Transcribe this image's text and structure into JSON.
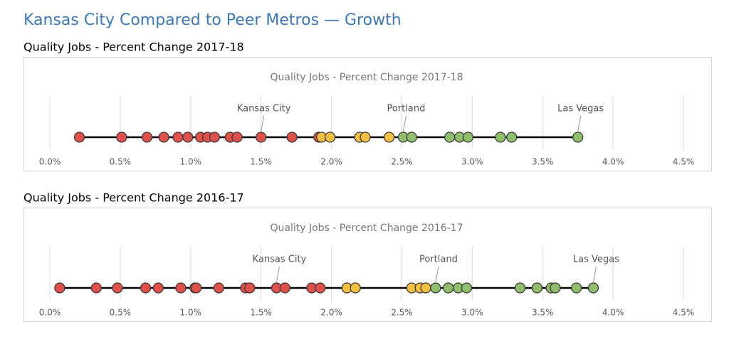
{
  "title": "Kansas City Compared to Peer Metros — Growth",
  "chart_data": [
    {
      "type": "strip",
      "heading": "Quality Jobs - Percent Change 2017-18",
      "title": "Quality Jobs - Percent Change 2017-18",
      "values": [
        0.21,
        0.51,
        0.69,
        0.81,
        0.91,
        0.98,
        1.07,
        1.12,
        1.17,
        1.28,
        1.33,
        1.5,
        1.72,
        1.91,
        1.93,
        1.99,
        2.2,
        2.24,
        2.41,
        2.51,
        2.57,
        2.84,
        2.91,
        2.97,
        3.2,
        3.28,
        3.75
      ],
      "colors": [
        "#e0504a",
        "#e0504a",
        "#e0504a",
        "#e0504a",
        "#e0504a",
        "#e0504a",
        "#e0504a",
        "#e0504a",
        "#e0504a",
        "#e0504a",
        "#e0504a",
        "#e0504a",
        "#e0504a",
        "#e0504a",
        "#f4c042",
        "#f4c042",
        "#f4c042",
        "#f4c042",
        "#f4c042",
        "#8fbf6a",
        "#8fbf6a",
        "#8fbf6a",
        "#8fbf6a",
        "#8fbf6a",
        "#8fbf6a",
        "#8fbf6a",
        "#8fbf6a"
      ],
      "labels": [
        null,
        null,
        null,
        null,
        null,
        null,
        null,
        null,
        null,
        null,
        null,
        "Kansas City",
        null,
        null,
        null,
        null,
        null,
        null,
        null,
        "Portland",
        null,
        null,
        null,
        null,
        null,
        null,
        "Las Vegas"
      ],
      "xlim": [
        0,
        4.5
      ],
      "xticks": [
        {
          "value": 0,
          "label": "0.0%"
        },
        {
          "value": 0.5,
          "label": "0.5%"
        },
        {
          "value": 1,
          "label": "1.0%"
        },
        {
          "value": 1.5,
          "label": "1.5%"
        },
        {
          "value": 2,
          "label": "2.0%"
        },
        {
          "value": 2.5,
          "label": "2.5%"
        },
        {
          "value": 3,
          "label": "3.0%"
        },
        {
          "value": 3.5,
          "label": "3.5%"
        },
        {
          "value": 4,
          "label": "4.0%"
        },
        {
          "value": 4.5,
          "label": "4.5%"
        }
      ],
      "grid": true
    },
    {
      "type": "strip",
      "heading": "Quality Jobs - Percent Change 2016-17",
      "title": "Quality Jobs - Percent Change 2016-17",
      "values": [
        0.07,
        0.33,
        0.48,
        0.68,
        0.77,
        0.93,
        1.03,
        1.04,
        1.2,
        1.39,
        1.42,
        1.61,
        1.67,
        1.86,
        1.92,
        2.11,
        2.17,
        2.57,
        2.63,
        2.67,
        2.74,
        2.83,
        2.9,
        2.96,
        3.34,
        3.46,
        3.56,
        3.59,
        3.74,
        3.86
      ],
      "colors": [
        "#e0504a",
        "#e0504a",
        "#e0504a",
        "#e0504a",
        "#e0504a",
        "#e0504a",
        "#e0504a",
        "#e0504a",
        "#e0504a",
        "#e0504a",
        "#e0504a",
        "#e0504a",
        "#e0504a",
        "#e0504a",
        "#e0504a",
        "#f4c042",
        "#f4c042",
        "#f4c042",
        "#f4c042",
        "#f4c042",
        "#8fbf6a",
        "#8fbf6a",
        "#8fbf6a",
        "#8fbf6a",
        "#8fbf6a",
        "#8fbf6a",
        "#8fbf6a",
        "#8fbf6a",
        "#8fbf6a",
        "#8fbf6a"
      ],
      "labels": [
        null,
        null,
        null,
        null,
        null,
        null,
        null,
        null,
        null,
        null,
        null,
        "Kansas City",
        null,
        null,
        null,
        null,
        null,
        null,
        null,
        null,
        "Portland",
        null,
        null,
        null,
        null,
        null,
        null,
        null,
        null,
        "Las Vegas"
      ],
      "xlim": [
        0,
        4.5
      ],
      "xticks": [
        {
          "value": 0,
          "label": "0.0%"
        },
        {
          "value": 0.5,
          "label": "0.5%"
        },
        {
          "value": 1,
          "label": "1.0%"
        },
        {
          "value": 1.5,
          "label": "1.5%"
        },
        {
          "value": 2,
          "label": "2.0%"
        },
        {
          "value": 2.5,
          "label": "2.5%"
        },
        {
          "value": 3,
          "label": "3.0%"
        },
        {
          "value": 3.5,
          "label": "3.5%"
        },
        {
          "value": 4,
          "label": "4.0%"
        },
        {
          "value": 4.5,
          "label": "4.5%"
        }
      ],
      "grid": true
    }
  ]
}
